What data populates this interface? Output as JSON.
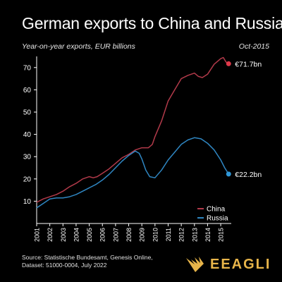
{
  "header": {
    "title": "German exports to China and Russia",
    "subtitle": "Year-on-year exports, EUR billions",
    "date": "Oct-2015"
  },
  "footer": {
    "source_lines": [
      "Source: Statistische Bundesamt, Genesis Online,",
      "Dataset: 51000-0004, July 2022"
    ],
    "brand": "EEAGLI",
    "brand_icon": "eagle-logo-icon"
  },
  "colors": {
    "background": "#000000",
    "china": "#b23a4a",
    "russia": "#2f86c2",
    "china_dot": "#e0394a",
    "russia_dot": "#2f97d8",
    "axis": "#ffffff",
    "brand": "#e8b54a"
  },
  "chart_data": {
    "type": "line",
    "title": "German exports to China and Russia",
    "ylim": [
      0,
      75
    ],
    "xlim": [
      2001,
      2015.8
    ],
    "yticks": [
      10,
      20,
      30,
      40,
      50,
      60,
      70
    ],
    "xticks": [
      "2001",
      "2002",
      "2003",
      "2004",
      "2005",
      "2006",
      "2007",
      "2008",
      "2009",
      "2010",
      "2011",
      "2012",
      "2013",
      "2014",
      "2015"
    ],
    "grid": false,
    "legend": "bottom-right",
    "series": [
      {
        "name": "China",
        "color": "#b23a4a",
        "end_label": "€71.7bn",
        "points": [
          [
            2001.0,
            9.5
          ],
          [
            2001.5,
            11.0
          ],
          [
            2002.0,
            12.0
          ],
          [
            2002.5,
            13.0
          ],
          [
            2003.0,
            14.5
          ],
          [
            2003.5,
            16.5
          ],
          [
            2004.0,
            18.0
          ],
          [
            2004.5,
            20.0
          ],
          [
            2005.0,
            21.0
          ],
          [
            2005.3,
            20.5
          ],
          [
            2005.6,
            21.0
          ],
          [
            2006.0,
            22.5
          ],
          [
            2006.5,
            24.5
          ],
          [
            2007.0,
            27.0
          ],
          [
            2007.5,
            29.5
          ],
          [
            2008.0,
            31.0
          ],
          [
            2008.5,
            33.0
          ],
          [
            2009.0,
            34.0
          ],
          [
            2009.5,
            34.0
          ],
          [
            2009.8,
            35.5
          ],
          [
            2010.0,
            39.0
          ],
          [
            2010.5,
            46.0
          ],
          [
            2011.0,
            55.0
          ],
          [
            2011.5,
            60.0
          ],
          [
            2012.0,
            65.0
          ],
          [
            2012.5,
            66.5
          ],
          [
            2013.0,
            67.5
          ],
          [
            2013.3,
            66.0
          ],
          [
            2013.6,
            65.5
          ],
          [
            2014.0,
            67.0
          ],
          [
            2014.5,
            71.5
          ],
          [
            2015.0,
            74.0
          ],
          [
            2015.2,
            74.5
          ],
          [
            2015.4,
            72.5
          ],
          [
            2015.6,
            71.7
          ]
        ]
      },
      {
        "name": "Russia",
        "color": "#2f86c2",
        "end_label": "€22.2bn",
        "points": [
          [
            2001.0,
            7.0
          ],
          [
            2001.5,
            9.0
          ],
          [
            2002.0,
            11.0
          ],
          [
            2002.5,
            11.5
          ],
          [
            2003.0,
            11.5
          ],
          [
            2003.5,
            12.0
          ],
          [
            2004.0,
            13.0
          ],
          [
            2004.5,
            14.5
          ],
          [
            2005.0,
            16.0
          ],
          [
            2005.5,
            17.5
          ],
          [
            2006.0,
            19.5
          ],
          [
            2006.5,
            22.0
          ],
          [
            2007.0,
            25.0
          ],
          [
            2007.5,
            28.0
          ],
          [
            2008.0,
            30.5
          ],
          [
            2008.5,
            32.5
          ],
          [
            2008.8,
            31.5
          ],
          [
            2009.0,
            29.0
          ],
          [
            2009.3,
            24.0
          ],
          [
            2009.6,
            21.0
          ],
          [
            2010.0,
            20.5
          ],
          [
            2010.5,
            24.0
          ],
          [
            2011.0,
            28.5
          ],
          [
            2011.5,
            32.0
          ],
          [
            2012.0,
            35.5
          ],
          [
            2012.5,
            37.5
          ],
          [
            2013.0,
            38.5
          ],
          [
            2013.5,
            38.0
          ],
          [
            2014.0,
            36.0
          ],
          [
            2014.5,
            33.0
          ],
          [
            2015.0,
            28.5
          ],
          [
            2015.3,
            25.0
          ],
          [
            2015.6,
            22.2
          ]
        ]
      }
    ]
  }
}
